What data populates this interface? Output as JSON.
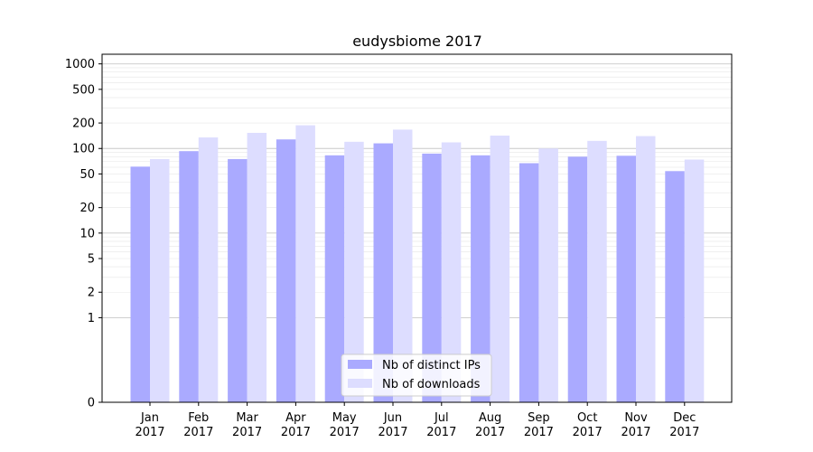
{
  "chart_data": {
    "type": "bar",
    "title": "eudysbiome 2017",
    "xlabel": "",
    "ylabel": "",
    "yscale": "symlog",
    "ylim": [
      0,
      1300
    ],
    "yticks": [
      0,
      1,
      2,
      5,
      10,
      20,
      50,
      100,
      200,
      500,
      1000
    ],
    "ytick_labels": [
      "0",
      "1",
      "2",
      "5",
      "10",
      "20",
      "50",
      "100",
      "200",
      "500",
      "1000"
    ],
    "categories": [
      [
        "Jan",
        "2017"
      ],
      [
        "Feb",
        "2017"
      ],
      [
        "Mar",
        "2017"
      ],
      [
        "Apr",
        "2017"
      ],
      [
        "May",
        "2017"
      ],
      [
        "Jun",
        "2017"
      ],
      [
        "Jul",
        "2017"
      ],
      [
        "Aug",
        "2017"
      ],
      [
        "Sep",
        "2017"
      ],
      [
        "Oct",
        "2017"
      ],
      [
        "Nov",
        "2017"
      ],
      [
        "Dec",
        "2017"
      ]
    ],
    "series": [
      {
        "name": "Nb of distinct IPs",
        "color": "#aaaaff",
        "values": [
          61,
          93,
          75,
          128,
          83,
          115,
          87,
          83,
          67,
          80,
          82,
          54
        ]
      },
      {
        "name": "Nb of downloads",
        "color": "#ddddff",
        "values": [
          75,
          135,
          153,
          188,
          120,
          167,
          118,
          142,
          100,
          123,
          140,
          74
        ]
      }
    ],
    "grid": true,
    "legend_position": "bottom-center"
  }
}
